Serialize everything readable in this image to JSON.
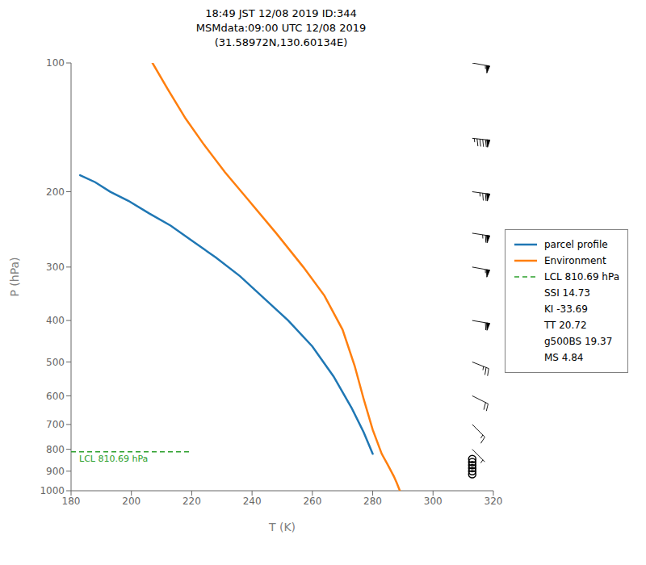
{
  "chart_data": {
    "type": "line",
    "title": "18:49 JST 12/08 2019  ID:344\nMSMdata:09:00 UTC 12/08 2019\n(31.58972N,130.60134E)",
    "x_label": "T (K)",
    "y_label": "P (hPa)",
    "xlim": [
      180,
      320
    ],
    "xticks": [
      180,
      200,
      220,
      240,
      260,
      280,
      300,
      320
    ],
    "ylim": [
      1000,
      100
    ],
    "yticks": [
      100,
      200,
      300,
      400,
      500,
      600,
      700,
      800,
      900,
      1000
    ],
    "log": "y",
    "grid": false,
    "legend": "right",
    "series": [
      {
        "name": "parcel profile",
        "color": "#1f77b4",
        "x": [
          183,
          188,
          193,
          199,
          206,
          213,
          220,
          228,
          236,
          244,
          252,
          260,
          267,
          273,
          277,
          280
        ],
        "values": [
          183,
          190,
          200,
          210,
          225,
          240,
          260,
          285,
          315,
          355,
          400,
          460,
          540,
          640,
          730,
          820
        ]
      },
      {
        "name": "Environment",
        "color": "#ff7f0e",
        "x": [
          207,
          212,
          218,
          224,
          231,
          239,
          248,
          257,
          264,
          270,
          274,
          277,
          280,
          283,
          285,
          287,
          288,
          289
        ],
        "values": [
          100,
          115,
          135,
          155,
          180,
          210,
          250,
          300,
          350,
          420,
          510,
          610,
          720,
          820,
          870,
          925,
          960,
          1000
        ]
      }
    ],
    "lcl": {
      "pressure": 810.69,
      "x": [
        180,
        220
      ],
      "label": "LCL 810.69 hPa",
      "color": "#2ca02c",
      "line_style": "dashed"
    },
    "wind_barbs": {
      "x": 313,
      "pressures": [
        100,
        150,
        200,
        250,
        300,
        400,
        500,
        600,
        700,
        800
      ],
      "u_knots": [
        -55,
        -95,
        -75,
        -65,
        -55,
        -60,
        -25,
        -20,
        -10,
        -5
      ],
      "v_knots": [
        10,
        10,
        10,
        10,
        10,
        10,
        10,
        10,
        10,
        5
      ]
    },
    "calm_circles": {
      "x": 313,
      "pressures": [
        843,
        857,
        871,
        885,
        900,
        915
      ]
    },
    "legend_notes": [
      "SSI 14.73",
      "KI -33.69",
      "TT 20.72",
      "g500BS 19.37",
      "MS 4.84"
    ]
  }
}
